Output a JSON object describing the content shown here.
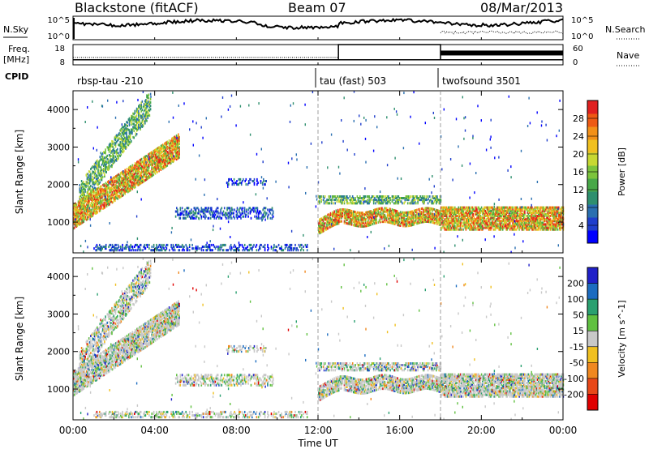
{
  "header": {
    "radar": "Blackstone (fitACF)",
    "beam": "Beam 07",
    "date": "08/Mar/2013"
  },
  "noise_panel": {
    "left_label": "N.Sky",
    "right_label": "N.Search",
    "left_ticks": [
      "10^5",
      "10^0"
    ],
    "right_ticks": [
      "10^5",
      "10^0"
    ]
  },
  "freq_panel": {
    "left_label_line1": "Freq.",
    "left_label_line2": "[MHz]",
    "right_label": "Nave",
    "left_ticks": [
      "18",
      "8"
    ],
    "right_ticks": [
      "60",
      "0"
    ],
    "freq_mhz": 10.5,
    "nave_segments": [
      {
        "start_h": 0,
        "end_h": 13,
        "nave": 22
      },
      {
        "start_h": 13,
        "end_h": 18,
        "nave": 60
      },
      {
        "start_h": 18,
        "end_h": 24,
        "nave": 35
      }
    ]
  },
  "cpid_panel": {
    "label": "CPID",
    "programs": [
      {
        "name": "rbsp-tau -210",
        "start_h": 0
      },
      {
        "name": "tau (fast) 503",
        "start_h": 12
      },
      {
        "name": "twofsound 3501",
        "start_h": 18
      }
    ]
  },
  "chart_data": [
    {
      "type": "heatmap",
      "quantity": "Power",
      "ylabel": "Slant Range [km]",
      "ylim": [
        180,
        4500
      ],
      "yticks": [
        "1000",
        "2000",
        "3000",
        "4000"
      ],
      "xlim": [
        0,
        24
      ],
      "colorbar": {
        "label": "Power [dB]",
        "ticks": [
          "4",
          "8",
          "12",
          "16",
          "20",
          "24",
          "28"
        ],
        "colors": [
          "#0000ff",
          "#1f3ecc",
          "#2a6fb0",
          "#2e8f6e",
          "#48a848",
          "#7cc43c",
          "#c7d832",
          "#f0c020",
          "#f39018",
          "#ee5a14",
          "#e02020"
        ]
      },
      "echo_regions": [
        {
          "t0": 0.3,
          "t1": 3.8,
          "r0": 1500,
          "r1": 4400,
          "level": "medium"
        },
        {
          "t0": 0.0,
          "t1": 5.2,
          "r0": 1000,
          "r1": 3300,
          "level": "high"
        },
        {
          "t0": 5.0,
          "t1": 9.8,
          "r0": 1100,
          "r1": 1400,
          "level": "low"
        },
        {
          "t0": 7.5,
          "t1": 9.5,
          "r0": 2000,
          "r1": 2150,
          "level": "low"
        },
        {
          "t0": 12.0,
          "t1": 18.0,
          "r0": 900,
          "r1": 1300,
          "level": "high"
        },
        {
          "t0": 12.0,
          "t1": 18.0,
          "r0": 1500,
          "r1": 1700,
          "level": "medium"
        },
        {
          "t0": 18.0,
          "t1": 24.0,
          "r0": 800,
          "r1": 1400,
          "level": "high"
        },
        {
          "t0": 1.0,
          "t1": 11.5,
          "r0": 250,
          "r1": 400,
          "level": "low"
        }
      ]
    },
    {
      "type": "heatmap",
      "quantity": "Velocity",
      "ylabel": "Slant Range [km]",
      "ylim": [
        180,
        4500
      ],
      "yticks": [
        "1000",
        "2000",
        "3000",
        "4000"
      ],
      "xlim": [
        0,
        24
      ],
      "colorbar": {
        "label": "Velocity [m s^-1]",
        "ticks": [
          "200",
          "100",
          "50",
          "15",
          "-15",
          "-50",
          "-100",
          "-200"
        ],
        "colors": [
          "#2020c8",
          "#1c6cc0",
          "#2aa070",
          "#60c040",
          "#c8c8c8",
          "#f0c020",
          "#f08820",
          "#e84818",
          "#e00000"
        ]
      }
    }
  ],
  "time_axis": {
    "label": "Time UT",
    "ticks": [
      "00:00",
      "04:00",
      "08:00",
      "12:00",
      "16:00",
      "20:00",
      "00:00"
    ]
  }
}
